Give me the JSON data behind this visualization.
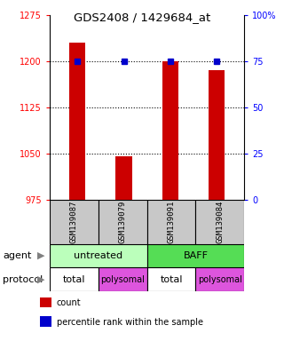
{
  "title": "GDS2408 / 1429684_at",
  "samples": [
    "GSM139087",
    "GSM139079",
    "GSM139091",
    "GSM139084"
  ],
  "bar_values": [
    1230,
    1045,
    1200,
    1185
  ],
  "percentile_values": [
    75,
    75,
    75,
    75
  ],
  "bar_color": "#cc0000",
  "dot_color": "#0000cc",
  "ylim_left": [
    975,
    1275
  ],
  "yticks_left": [
    975,
    1050,
    1125,
    1200,
    1275
  ],
  "ylim_right": [
    0,
    100
  ],
  "yticks_right": [
    0,
    25,
    50,
    75,
    100
  ],
  "ytick_labels_right": [
    "0",
    "25",
    "50",
    "75",
    "100%"
  ],
  "protocol_labels": [
    "total",
    "polysomal",
    "total",
    "polysomal"
  ],
  "agent_specs": [
    {
      "label": "untreated",
      "color": "#bbffbb",
      "span": 2
    },
    {
      "label": "BAFF",
      "color": "#55dd55",
      "span": 2
    }
  ],
  "protocol_colors": [
    "#ffffff",
    "#dd55dd",
    "#ffffff",
    "#dd55dd"
  ],
  "sample_bg_color": "#c8c8c8",
  "legend_items": [
    {
      "color": "#cc0000",
      "label": "count"
    },
    {
      "color": "#0000cc",
      "label": "percentile rank within the sample"
    }
  ],
  "bar_width": 0.35,
  "x_positions": [
    0,
    1,
    2,
    3
  ],
  "grid_yticks": [
    1050,
    1125,
    1200
  ]
}
